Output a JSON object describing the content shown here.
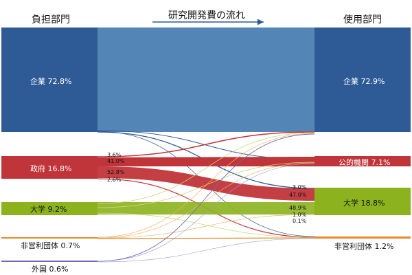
{
  "headers": {
    "source": "負担部門",
    "flow": "研究開発費の流れ",
    "target": "使用部門"
  },
  "colors": {
    "enterprise": "#2e5a96",
    "government": "#c0353a",
    "university": "#8cb31e",
    "nonprofit": "#e6892b",
    "foreign": "#6c6db5",
    "main_flow": "#4a7fb3",
    "arrow": "#2a5b8f"
  },
  "sources": [
    {
      "id": "ent",
      "name": "企業",
      "pct": "72.8%"
    },
    {
      "id": "gov",
      "name": "政府",
      "pct": "16.8%"
    },
    {
      "id": "uni",
      "name": "大学",
      "pct": "9.2%"
    },
    {
      "id": "npo",
      "name": "非営利団体",
      "pct": "0.7%"
    },
    {
      "id": "for",
      "name": "外国",
      "pct": "0.6%"
    }
  ],
  "targets": [
    {
      "id": "ent",
      "name": "企業",
      "pct": "72.9%"
    },
    {
      "id": "pub",
      "name": "公的機関",
      "pct": "7.1%"
    },
    {
      "id": "uni",
      "name": "大学",
      "pct": "18.8%"
    },
    {
      "id": "npo",
      "name": "非営利団体",
      "pct": "1.2%"
    }
  ],
  "flow_labels": {
    "gov_to_ent": "3.6%",
    "gov_to_pub": "41.0%",
    "gov_to_uni": "52.8%",
    "gov_to_npo": "2.6%",
    "ent_to_uni": "3.0%",
    "gov_into_uni": "47.0%",
    "uni_into_uni": "48.9%",
    "npo_into_uni": "1.0%",
    "for_into_uni": "0.1%"
  }
}
